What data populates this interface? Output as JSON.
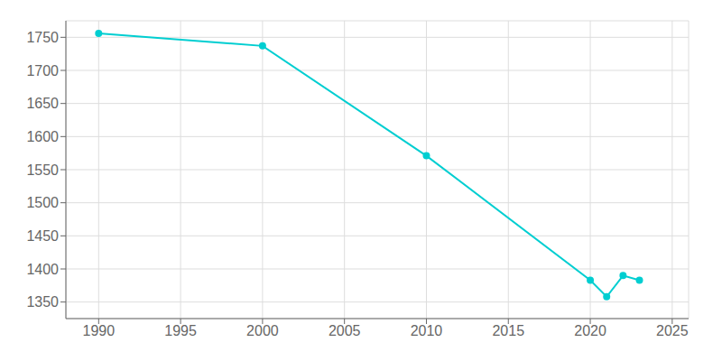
{
  "chart_data": {
    "type": "line",
    "x": [
      1990,
      2000,
      2010,
      2020,
      2021,
      2022,
      2023
    ],
    "values": [
      1756,
      1737,
      1571,
      1383,
      1358,
      1390,
      1383
    ],
    "color": "#00CED1",
    "marker": "circle",
    "xlim": [
      1988,
      2026
    ],
    "ylim": [
      1325,
      1775
    ],
    "xticks": [
      1990,
      1995,
      2000,
      2005,
      2010,
      2015,
      2020,
      2025
    ],
    "yticks": [
      1350,
      1400,
      1450,
      1500,
      1550,
      1600,
      1650,
      1700,
      1750
    ],
    "grid": true
  }
}
